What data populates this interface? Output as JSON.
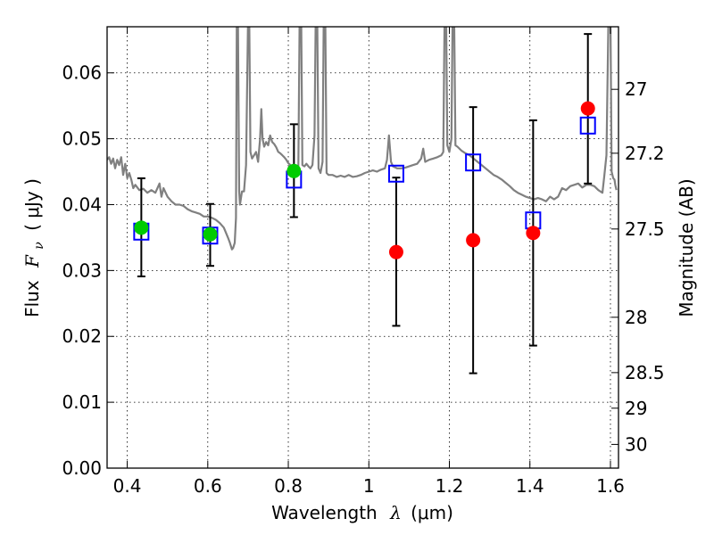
{
  "chart_data": {
    "type": "scatter",
    "xlabel": "Wavelength",
    "xlabel_symbol": "λ",
    "xlabel_unit": "(μm)",
    "ylabel": "Flux",
    "ylabel_symbol": "F",
    "ylabel_symbol_sub": "ν",
    "ylabel_unit": "( μJy )",
    "y2label": "Magnitude (AB)",
    "xlim": [
      0.35,
      1.62
    ],
    "ylim": [
      0.0,
      0.067
    ],
    "grid": true,
    "x_ticks": [
      0.4,
      0.6,
      0.8,
      1.0,
      1.2,
      1.4,
      1.6
    ],
    "x_tick_labels": [
      "0.4",
      "0.6",
      "0.8",
      "1",
      "1.2",
      "1.4",
      "1.6"
    ],
    "y_ticks": [
      0.0,
      0.01,
      0.02,
      0.03,
      0.04,
      0.05,
      0.06
    ],
    "y_tick_labels": [
      "0.00",
      "0.01",
      "0.02",
      "0.03",
      "0.04",
      "0.05",
      "0.06"
    ],
    "y2_ticks": [
      {
        "label": "27",
        "flux": 0.0575
      },
      {
        "label": "27.2",
        "flux": 0.0478
      },
      {
        "label": "27.5",
        "flux": 0.0363
      },
      {
        "label": "28",
        "flux": 0.0229
      },
      {
        "label": "28.5",
        "flux": 0.0145
      },
      {
        "label": "29",
        "flux": 0.0091
      },
      {
        "label": "30",
        "flux": 0.0036
      }
    ],
    "series": [
      {
        "marker": "square",
        "color": "#0000ff",
        "points": [
          {
            "x": 0.435,
            "y": 0.0359
          },
          {
            "x": 0.606,
            "y": 0.0353
          },
          {
            "x": 0.814,
            "y": 0.0438
          },
          {
            "x": 1.068,
            "y": 0.0447
          },
          {
            "x": 1.259,
            "y": 0.0464
          },
          {
            "x": 1.408,
            "y": 0.0376
          },
          {
            "x": 1.544,
            "y": 0.052
          }
        ]
      },
      {
        "marker": "circle",
        "color": "#00cc00",
        "points": [
          {
            "x": 0.435,
            "y": 0.0365,
            "yerr_low": 0.0291,
            "yerr_high": 0.044
          },
          {
            "x": 0.606,
            "y": 0.0355,
            "yerr_low": 0.0307,
            "yerr_high": 0.0401
          },
          {
            "x": 0.814,
            "y": 0.0451,
            "yerr_low": 0.0381,
            "yerr_high": 0.0522
          }
        ]
      },
      {
        "marker": "circle",
        "color": "#ff0000",
        "points": [
          {
            "x": 1.068,
            "y": 0.0328,
            "yerr_low": 0.0216,
            "yerr_high": 0.0441
          },
          {
            "x": 1.259,
            "y": 0.0346,
            "yerr_low": 0.0144,
            "yerr_high": 0.0548
          },
          {
            "x": 1.408,
            "y": 0.0357,
            "yerr_low": 0.0186,
            "yerr_high": 0.0528
          },
          {
            "x": 1.544,
            "y": 0.0546,
            "yerr_low": 0.0432,
            "yerr_high": 0.0659
          }
        ]
      }
    ],
    "model_spectrum": {
      "color": "#808080",
      "points": [
        [
          0.35,
          0.0468
        ],
        [
          0.355,
          0.0472
        ],
        [
          0.36,
          0.0462
        ],
        [
          0.365,
          0.047
        ],
        [
          0.37,
          0.0455
        ],
        [
          0.375,
          0.0468
        ],
        [
          0.38,
          0.046
        ],
        [
          0.385,
          0.0472
        ],
        [
          0.39,
          0.0445
        ],
        [
          0.395,
          0.0462
        ],
        [
          0.4,
          0.044
        ],
        [
          0.405,
          0.0448
        ],
        [
          0.41,
          0.0438
        ],
        [
          0.415,
          0.0425
        ],
        [
          0.42,
          0.043
        ],
        [
          0.43,
          0.0422
        ],
        [
          0.44,
          0.0424
        ],
        [
          0.45,
          0.0418
        ],
        [
          0.46,
          0.0422
        ],
        [
          0.47,
          0.0418
        ],
        [
          0.48,
          0.0432
        ],
        [
          0.485,
          0.0412
        ],
        [
          0.49,
          0.0425
        ],
        [
          0.5,
          0.0412
        ],
        [
          0.51,
          0.0405
        ],
        [
          0.52,
          0.04
        ],
        [
          0.53,
          0.04
        ],
        [
          0.54,
          0.0398
        ],
        [
          0.55,
          0.0393
        ],
        [
          0.56,
          0.039
        ],
        [
          0.57,
          0.0388
        ],
        [
          0.58,
          0.0386
        ],
        [
          0.59,
          0.0382
        ],
        [
          0.6,
          0.0382
        ],
        [
          0.61,
          0.038
        ],
        [
          0.62,
          0.0377
        ],
        [
          0.63,
          0.0372
        ],
        [
          0.64,
          0.0365
        ],
        [
          0.65,
          0.035
        ],
        [
          0.655,
          0.0342
        ],
        [
          0.66,
          0.0332
        ],
        [
          0.663,
          0.0334
        ],
        [
          0.667,
          0.0342
        ],
        [
          0.67,
          0.038
        ],
        [
          0.672,
          0.068
        ],
        [
          0.675,
          0.068
        ],
        [
          0.678,
          0.042
        ],
        [
          0.68,
          0.04
        ],
        [
          0.685,
          0.042
        ],
        [
          0.69,
          0.042
        ],
        [
          0.695,
          0.046
        ],
        [
          0.7,
          0.068
        ],
        [
          0.703,
          0.068
        ],
        [
          0.706,
          0.048
        ],
        [
          0.71,
          0.047
        ],
        [
          0.715,
          0.0475
        ],
        [
          0.72,
          0.048
        ],
        [
          0.725,
          0.0465
        ],
        [
          0.73,
          0.05
        ],
        [
          0.733,
          0.0545
        ],
        [
          0.736,
          0.05
        ],
        [
          0.74,
          0.0488
        ],
        [
          0.745,
          0.0495
        ],
        [
          0.75,
          0.049
        ],
        [
          0.755,
          0.0505
        ],
        [
          0.76,
          0.0495
        ],
        [
          0.765,
          0.0492
        ],
        [
          0.77,
          0.0487
        ],
        [
          0.775,
          0.048
        ],
        [
          0.78,
          0.0478
        ],
        [
          0.785,
          0.0475
        ],
        [
          0.79,
          0.0472
        ],
        [
          0.795,
          0.0468
        ],
        [
          0.8,
          0.0463
        ],
        [
          0.805,
          0.046
        ],
        [
          0.81,
          0.0458
        ],
        [
          0.815,
          0.0456
        ],
        [
          0.82,
          0.0455
        ],
        [
          0.825,
          0.0458
        ],
        [
          0.828,
          0.068
        ],
        [
          0.832,
          0.068
        ],
        [
          0.835,
          0.046
        ],
        [
          0.84,
          0.0458
        ],
        [
          0.845,
          0.0462
        ],
        [
          0.85,
          0.0458
        ],
        [
          0.855,
          0.0455
        ],
        [
          0.86,
          0.046
        ],
        [
          0.865,
          0.0505
        ],
        [
          0.868,
          0.068
        ],
        [
          0.872,
          0.068
        ],
        [
          0.875,
          0.0455
        ],
        [
          0.88,
          0.0448
        ],
        [
          0.885,
          0.0465
        ],
        [
          0.888,
          0.068
        ],
        [
          0.892,
          0.068
        ],
        [
          0.895,
          0.0448
        ],
        [
          0.9,
          0.0445
        ],
        [
          0.91,
          0.0445
        ],
        [
          0.92,
          0.0442
        ],
        [
          0.93,
          0.0444
        ],
        [
          0.94,
          0.0442
        ],
        [
          0.95,
          0.0445
        ],
        [
          0.96,
          0.0442
        ],
        [
          0.97,
          0.0443
        ],
        [
          0.98,
          0.0445
        ],
        [
          0.99,
          0.0448
        ],
        [
          1.0,
          0.045
        ],
        [
          1.01,
          0.0452
        ],
        [
          1.02,
          0.045
        ],
        [
          1.03,
          0.0453
        ],
        [
          1.04,
          0.0455
        ],
        [
          1.045,
          0.0468
        ],
        [
          1.05,
          0.0505
        ],
        [
          1.055,
          0.0465
        ],
        [
          1.06,
          0.0458
        ],
        [
          1.07,
          0.0455
        ],
        [
          1.08,
          0.0455
        ],
        [
          1.09,
          0.0456
        ],
        [
          1.1,
          0.0458
        ],
        [
          1.11,
          0.046
        ],
        [
          1.12,
          0.0462
        ],
        [
          1.13,
          0.047
        ],
        [
          1.135,
          0.0485
        ],
        [
          1.14,
          0.0465
        ],
        [
          1.15,
          0.0468
        ],
        [
          1.16,
          0.047
        ],
        [
          1.17,
          0.0472
        ],
        [
          1.18,
          0.0475
        ],
        [
          1.185,
          0.048
        ],
        [
          1.188,
          0.068
        ],
        [
          1.192,
          0.068
        ],
        [
          1.195,
          0.049
        ],
        [
          1.2,
          0.048
        ],
        [
          1.205,
          0.05
        ],
        [
          1.208,
          0.068
        ],
        [
          1.212,
          0.068
        ],
        [
          1.215,
          0.049
        ],
        [
          1.22,
          0.0488
        ],
        [
          1.23,
          0.0482
        ],
        [
          1.24,
          0.0478
        ],
        [
          1.25,
          0.0475
        ],
        [
          1.26,
          0.047
        ],
        [
          1.27,
          0.0465
        ],
        [
          1.28,
          0.046
        ],
        [
          1.29,
          0.0455
        ],
        [
          1.3,
          0.045
        ],
        [
          1.31,
          0.0445
        ],
        [
          1.32,
          0.0442
        ],
        [
          1.33,
          0.0438
        ],
        [
          1.34,
          0.0433
        ],
        [
          1.35,
          0.0428
        ],
        [
          1.36,
          0.0422
        ],
        [
          1.37,
          0.0418
        ],
        [
          1.38,
          0.0415
        ],
        [
          1.39,
          0.0412
        ],
        [
          1.4,
          0.041
        ],
        [
          1.41,
          0.0408
        ],
        [
          1.42,
          0.041
        ],
        [
          1.43,
          0.0408
        ],
        [
          1.44,
          0.0405
        ],
        [
          1.45,
          0.0412
        ],
        [
          1.46,
          0.0408
        ],
        [
          1.47,
          0.0412
        ],
        [
          1.48,
          0.0425
        ],
        [
          1.49,
          0.0422
        ],
        [
          1.5,
          0.0428
        ],
        [
          1.51,
          0.043
        ],
        [
          1.52,
          0.0432
        ],
        [
          1.53,
          0.0426
        ],
        [
          1.54,
          0.043
        ],
        [
          1.55,
          0.043
        ],
        [
          1.56,
          0.0428
        ],
        [
          1.57,
          0.0422
        ],
        [
          1.58,
          0.0418
        ],
        [
          1.585,
          0.0445
        ],
        [
          1.59,
          0.0475
        ],
        [
          1.595,
          0.068
        ],
        [
          1.6,
          0.068
        ],
        [
          1.603,
          0.045
        ],
        [
          1.607,
          0.044
        ],
        [
          1.61,
          0.0438
        ],
        [
          1.612,
          0.043
        ],
        [
          1.615,
          0.0422
        ]
      ]
    }
  }
}
